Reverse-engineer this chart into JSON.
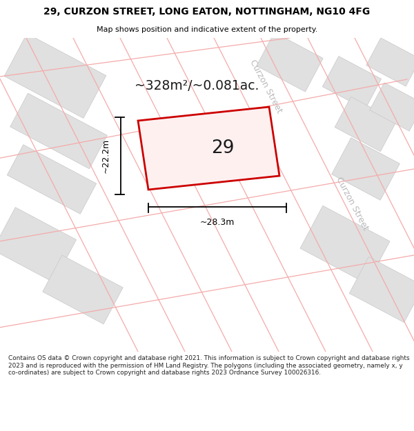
{
  "title": "29, CURZON STREET, LONG EATON, NOTTINGHAM, NG10 4FG",
  "subtitle": "Map shows position and indicative extent of the property.",
  "footer": "Contains OS data © Crown copyright and database right 2021. This information is subject to Crown copyright and database rights 2023 and is reproduced with the permission of HM Land Registry. The polygons (including the associated geometry, namely x, y co-ordinates) are subject to Crown copyright and database rights 2023 Ordnance Survey 100026316.",
  "area_label": "~328m²/~0.081ac.",
  "width_label": "~28.3m",
  "height_label": "~22.2m",
  "number_label": "29",
  "map_bg": "#f2f2f2",
  "footer_bg": "#ffffff",
  "title_color": "#000000",
  "road_color": "#ffffff",
  "building_color": "#e0e0e0",
  "building_edge": "#c8c8c8",
  "grid_line_color": "#f5aaaa",
  "property_color": "#cc0000",
  "property_fill": "#fff0f0",
  "street_label_color": "#bbbbbb",
  "dim_color": "#000000"
}
